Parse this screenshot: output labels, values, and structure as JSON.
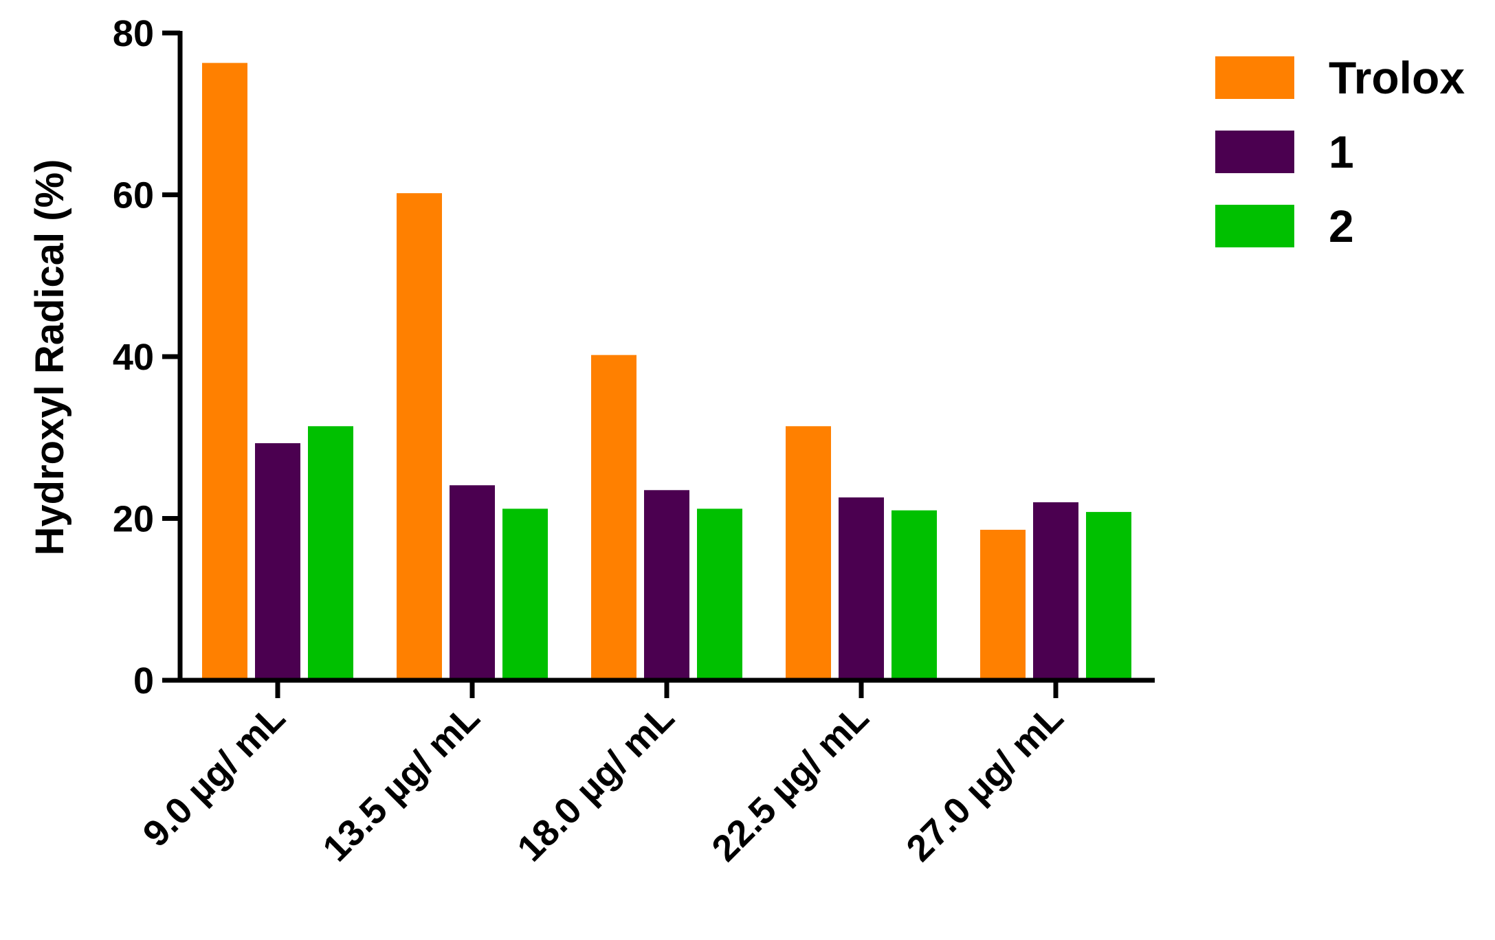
{
  "chart_data": {
    "type": "bar",
    "title": "",
    "xlabel": "",
    "ylabel": "Hydroxyl Radical (%)",
    "ylim": [
      0,
      80
    ],
    "yticks": [
      0,
      20,
      40,
      60,
      80
    ],
    "categories": [
      "9.0 µg/ mL",
      "13.5 µg/ mL",
      "18.0 µg/ mL",
      "22.5 µg/ mL",
      "27.0 µg/ mL"
    ],
    "series": [
      {
        "name": "Trolox",
        "color": "#FF8000",
        "values": [
          76.3,
          60.2,
          40.2,
          31.4,
          18.6
        ]
      },
      {
        "name": "1",
        "color": "#4B0050",
        "values": [
          29.3,
          24.1,
          23.5,
          22.6,
          22.0
        ]
      },
      {
        "name": "2",
        "color": "#00C000",
        "values": [
          31.4,
          21.2,
          21.2,
          21.0,
          20.8
        ]
      }
    ],
    "legend": "top-right",
    "grid": false
  }
}
